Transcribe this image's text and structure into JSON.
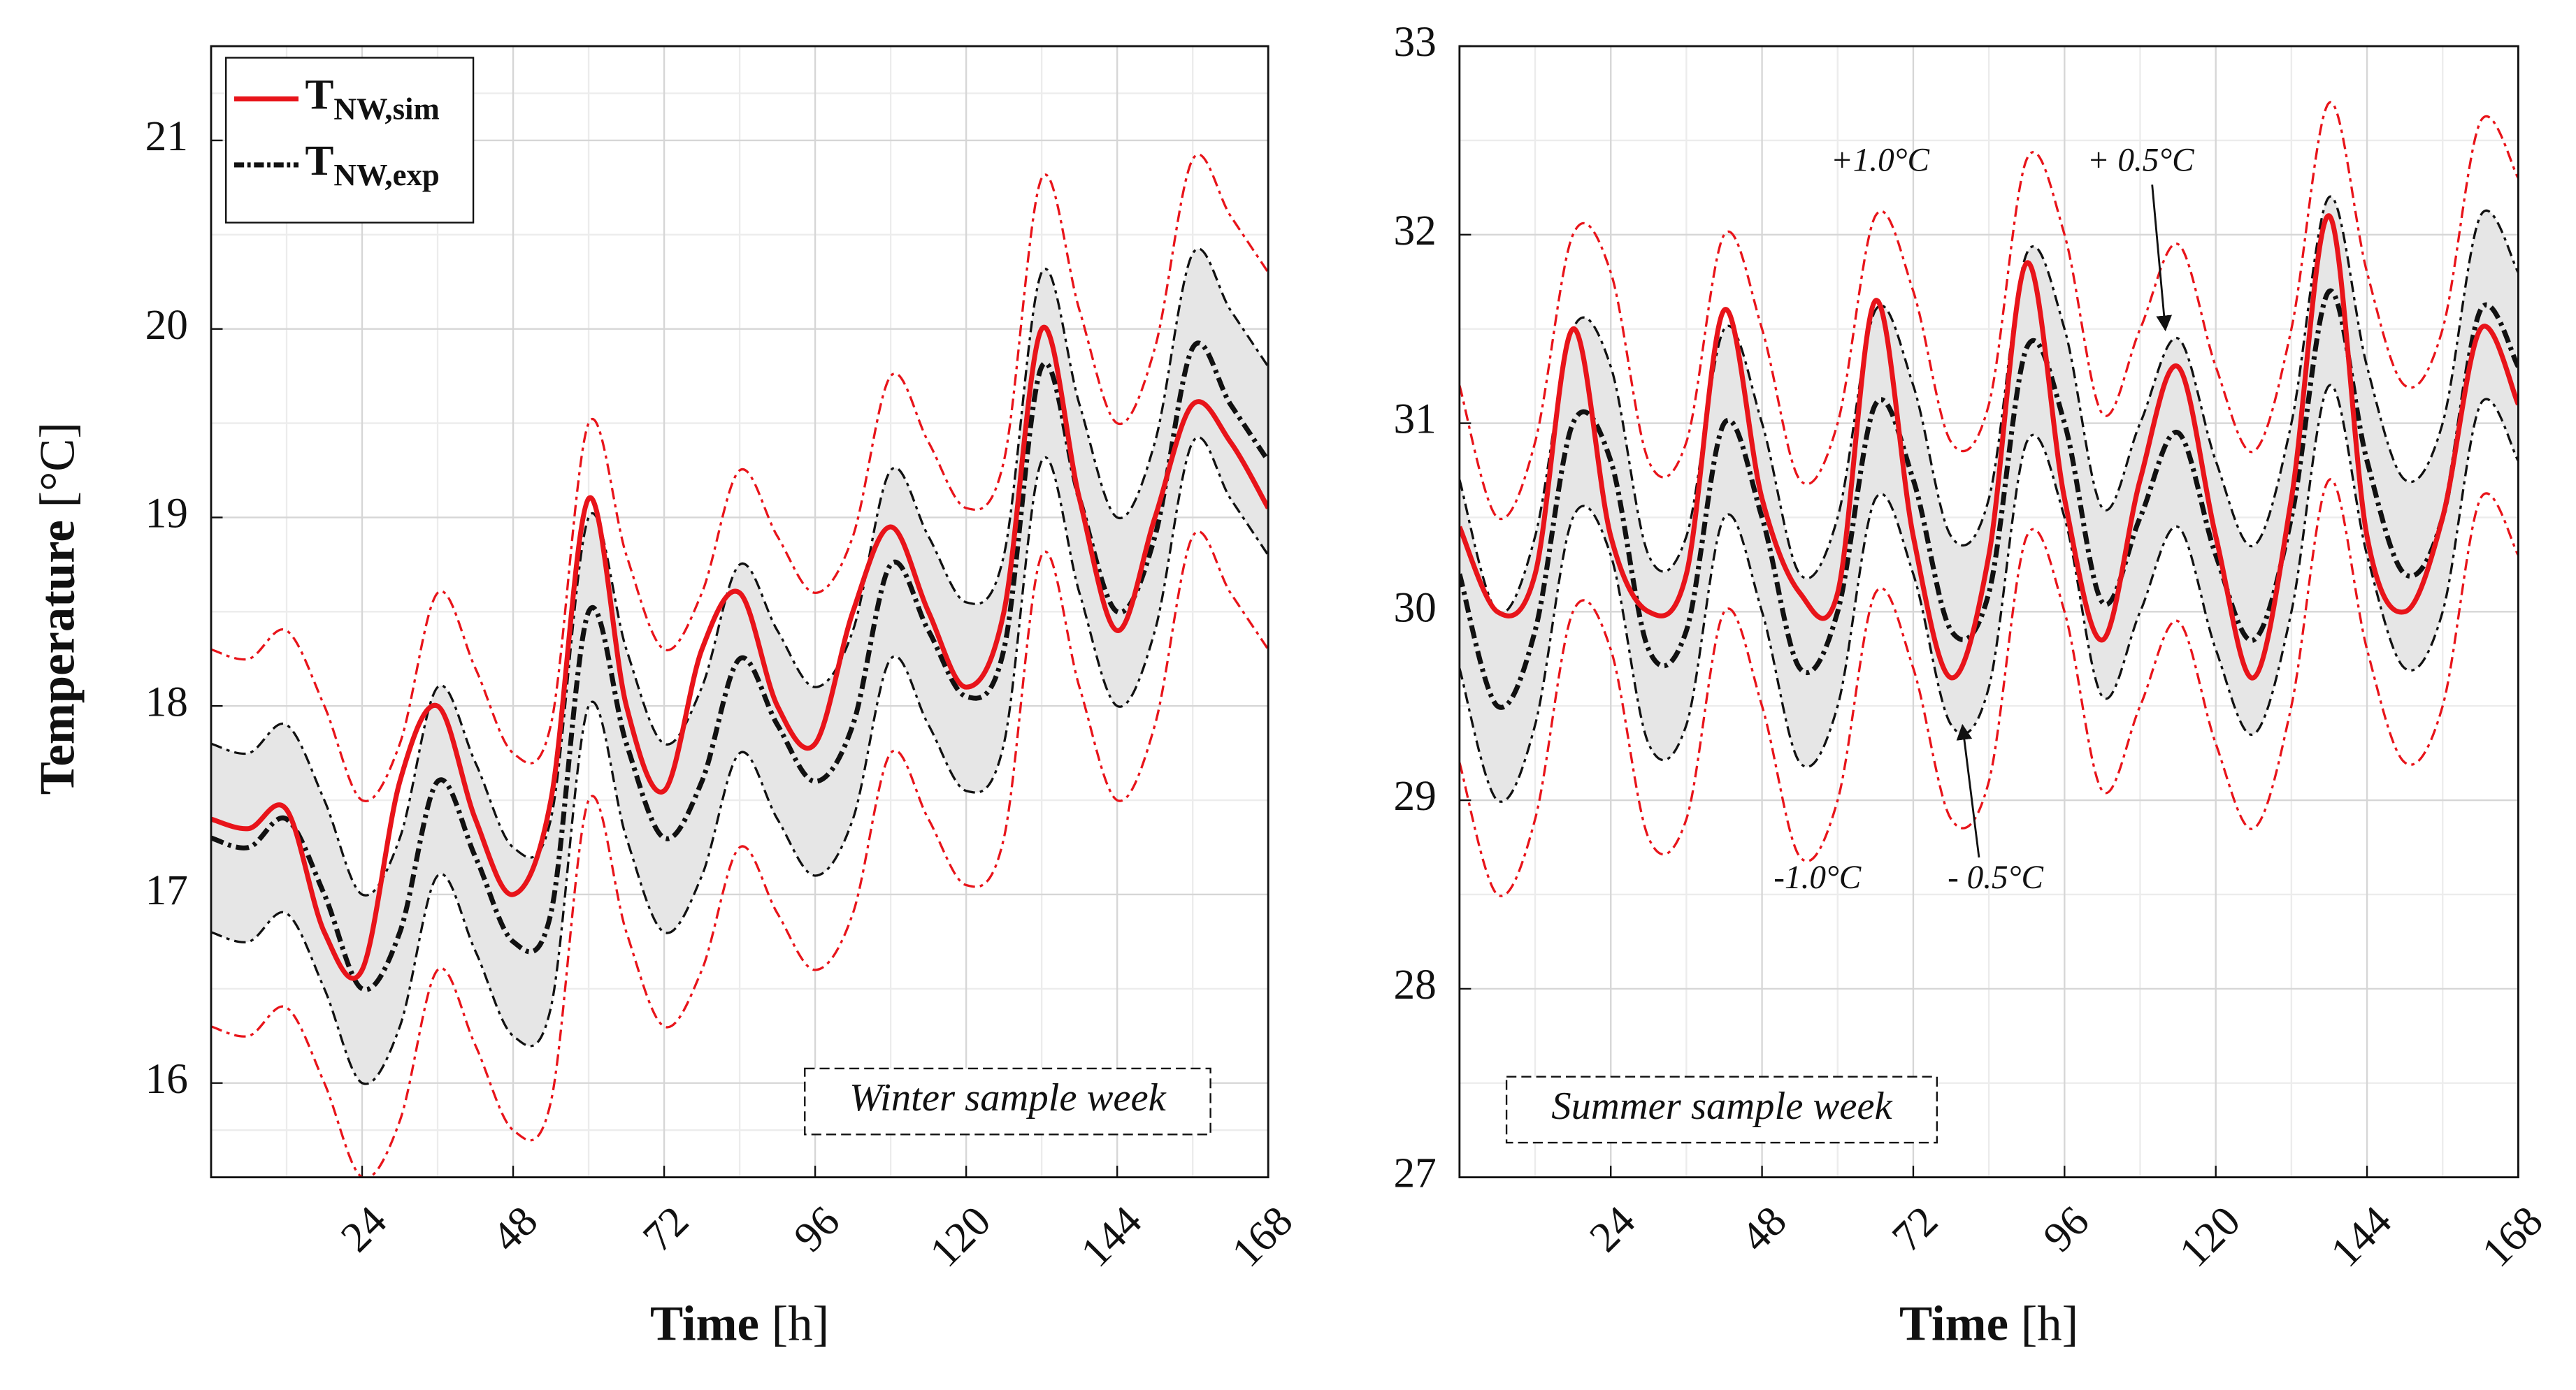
{
  "chart_data": [
    {
      "type": "line",
      "x": [
        0,
        6,
        12,
        18,
        24,
        30,
        36,
        42,
        48,
        54,
        60,
        66,
        72,
        78,
        84,
        90,
        96,
        102,
        108,
        114,
        120,
        126,
        132,
        138,
        144,
        150,
        156,
        162,
        168
      ],
      "xlim": [
        0,
        168
      ],
      "xticks": [
        24,
        48,
        72,
        96,
        120,
        144,
        168
      ],
      "ylim": [
        15.5,
        21.5
      ],
      "yticks": [
        16,
        17,
        18,
        19,
        20,
        21
      ],
      "grid": true,
      "minor_grid": true,
      "x_label": "Time",
      "x_unit": "[h]",
      "y_label": "Temperature",
      "y_unit": "[°C]",
      "legend": "upper left",
      "series": [
        {
          "name": "T",
          "name_subscript": "NW,sim",
          "color": "#e8141a",
          "style": "solid",
          "values": [
            17.4,
            17.35,
            17.45,
            16.8,
            16.6,
            17.6,
            18.0,
            17.4,
            17.0,
            17.5,
            19.1,
            18.0,
            17.55,
            18.3,
            18.6,
            18.0,
            17.8,
            18.5,
            18.95,
            18.5,
            18.1,
            18.5,
            20.0,
            19.1,
            18.4,
            19.0,
            19.6,
            19.4,
            19.05
          ]
        },
        {
          "name": "T",
          "name_subscript": "NW,exp",
          "color": "#111111",
          "style": "dashdot",
          "values": [
            17.3,
            17.25,
            17.4,
            17.0,
            16.5,
            16.8,
            17.6,
            17.2,
            16.75,
            16.9,
            18.5,
            17.8,
            17.3,
            17.6,
            18.25,
            17.9,
            17.6,
            17.9,
            18.75,
            18.4,
            18.05,
            18.3,
            19.8,
            19.1,
            18.5,
            18.9,
            19.9,
            19.6,
            19.3
          ]
        }
      ],
      "bands": [
        {
          "color": "#111111",
          "values": [
            17.8,
            17.75,
            17.9,
            17.5,
            17.0,
            17.3,
            18.1,
            17.7,
            17.25,
            17.4,
            19.0,
            18.3,
            17.8,
            18.1,
            18.75,
            18.4,
            18.1,
            18.4,
            19.25,
            18.9,
            18.55,
            18.8,
            20.3,
            19.6,
            19.0,
            19.4,
            20.4,
            20.1,
            19.8
          ]
        },
        {
          "color": "#111111",
          "values": [
            16.8,
            16.75,
            16.9,
            16.5,
            16.0,
            16.3,
            17.1,
            16.7,
            16.25,
            16.4,
            18.0,
            17.3,
            16.8,
            17.1,
            17.75,
            17.4,
            17.1,
            17.4,
            18.25,
            17.9,
            17.55,
            17.8,
            19.3,
            18.6,
            18.0,
            18.4,
            19.4,
            19.1,
            18.8
          ]
        },
        {
          "color": "#e8141a",
          "values": [
            18.3,
            18.25,
            18.4,
            18.0,
            17.5,
            17.8,
            18.6,
            18.2,
            17.75,
            17.9,
            19.5,
            18.8,
            18.3,
            18.6,
            19.25,
            18.9,
            18.6,
            18.9,
            19.75,
            19.4,
            19.05,
            19.3,
            20.8,
            20.1,
            19.5,
            19.9,
            20.9,
            20.6,
            20.3
          ]
        },
        {
          "color": "#e8141a",
          "values": [
            16.3,
            16.25,
            16.4,
            16.0,
            15.5,
            15.8,
            16.6,
            16.2,
            15.75,
            15.9,
            17.5,
            16.8,
            16.3,
            16.6,
            17.25,
            16.9,
            16.6,
            16.9,
            17.75,
            17.4,
            17.05,
            17.3,
            18.8,
            18.1,
            17.5,
            17.9,
            18.9,
            18.6,
            18.3
          ]
        }
      ],
      "band_fill": "#e6e6e6",
      "annotations": [
        {
          "text": "Winter sample week",
          "color": "#111111",
          "boxed": true
        }
      ]
    },
    {
      "type": "line",
      "x": [
        0,
        6,
        12,
        18,
        24,
        30,
        36,
        42,
        48,
        54,
        60,
        66,
        72,
        78,
        84,
        90,
        96,
        102,
        108,
        114,
        120,
        126,
        132,
        138,
        144,
        150,
        156,
        162,
        168
      ],
      "xlim": [
        0,
        168
      ],
      "xticks": [
        24,
        48,
        72,
        96,
        120,
        144,
        168
      ],
      "ylim": [
        27,
        33
      ],
      "yticks": [
        27,
        28,
        29,
        30,
        31,
        32,
        33
      ],
      "grid": true,
      "minor_grid": true,
      "x_label": "Time",
      "x_unit": "[h]",
      "series": [
        {
          "color": "#e8141a",
          "style": "solid",
          "values": [
            30.45,
            30.0,
            30.2,
            31.5,
            30.4,
            30.0,
            30.2,
            31.6,
            30.6,
            30.1,
            30.1,
            31.65,
            30.4,
            29.65,
            30.3,
            31.85,
            30.6,
            29.85,
            30.7,
            31.3,
            30.4,
            29.65,
            30.6,
            32.1,
            30.4,
            30.0,
            30.5,
            31.5,
            31.1
          ]
        },
        {
          "color": "#111111",
          "style": "dashdot",
          "values": [
            30.2,
            29.5,
            29.9,
            31.0,
            30.8,
            29.8,
            29.9,
            31.0,
            30.5,
            29.7,
            30.0,
            31.1,
            30.7,
            29.9,
            30.1,
            31.4,
            31.0,
            30.05,
            30.5,
            30.95,
            30.3,
            29.85,
            30.5,
            31.7,
            30.8,
            30.2,
            30.5,
            31.6,
            31.3
          ]
        }
      ],
      "bands": [
        {
          "color": "#111111",
          "values": [
            30.7,
            30.0,
            30.4,
            31.5,
            31.3,
            30.3,
            30.4,
            31.5,
            31.0,
            30.2,
            30.5,
            31.6,
            31.2,
            30.4,
            30.6,
            31.9,
            31.5,
            30.55,
            31.0,
            31.45,
            30.8,
            30.35,
            31.0,
            32.2,
            31.3,
            30.7,
            31.0,
            32.1,
            31.8
          ]
        },
        {
          "color": "#111111",
          "values": [
            29.7,
            29.0,
            29.4,
            30.5,
            30.3,
            29.3,
            29.4,
            30.5,
            30.0,
            29.2,
            29.5,
            30.6,
            30.2,
            29.4,
            29.6,
            30.9,
            30.5,
            29.55,
            30.0,
            30.45,
            29.8,
            29.35,
            30.0,
            31.2,
            30.3,
            29.7,
            30.0,
            31.1,
            30.8
          ]
        },
        {
          "color": "#e8141a",
          "values": [
            31.2,
            30.5,
            30.9,
            32.0,
            31.8,
            30.8,
            30.9,
            32.0,
            31.5,
            30.7,
            31.0,
            32.1,
            31.7,
            30.9,
            31.1,
            32.4,
            32.0,
            31.05,
            31.5,
            31.95,
            31.3,
            30.85,
            31.5,
            32.7,
            31.8,
            31.2,
            31.5,
            32.6,
            32.3
          ]
        },
        {
          "color": "#e8141a",
          "values": [
            29.2,
            28.5,
            28.9,
            30.0,
            29.8,
            28.8,
            28.9,
            30.0,
            29.5,
            28.7,
            29.0,
            30.1,
            29.7,
            28.9,
            29.1,
            30.4,
            30.0,
            29.05,
            29.5,
            29.95,
            29.3,
            28.85,
            29.5,
            30.7,
            29.8,
            29.2,
            29.5,
            30.6,
            30.3
          ]
        }
      ],
      "band_fill": "#e6e6e6",
      "annotations": [
        {
          "text": "Summer sample week",
          "color": "#111111",
          "boxed": true
        },
        {
          "text": "+1.0°C",
          "color": "#e8141a"
        },
        {
          "text": "+ 0.5°C",
          "color": "#111111"
        },
        {
          "text": "-1.0°C",
          "color": "#e8141a"
        },
        {
          "text": "- 0.5°C",
          "color": "#111111"
        }
      ]
    }
  ]
}
